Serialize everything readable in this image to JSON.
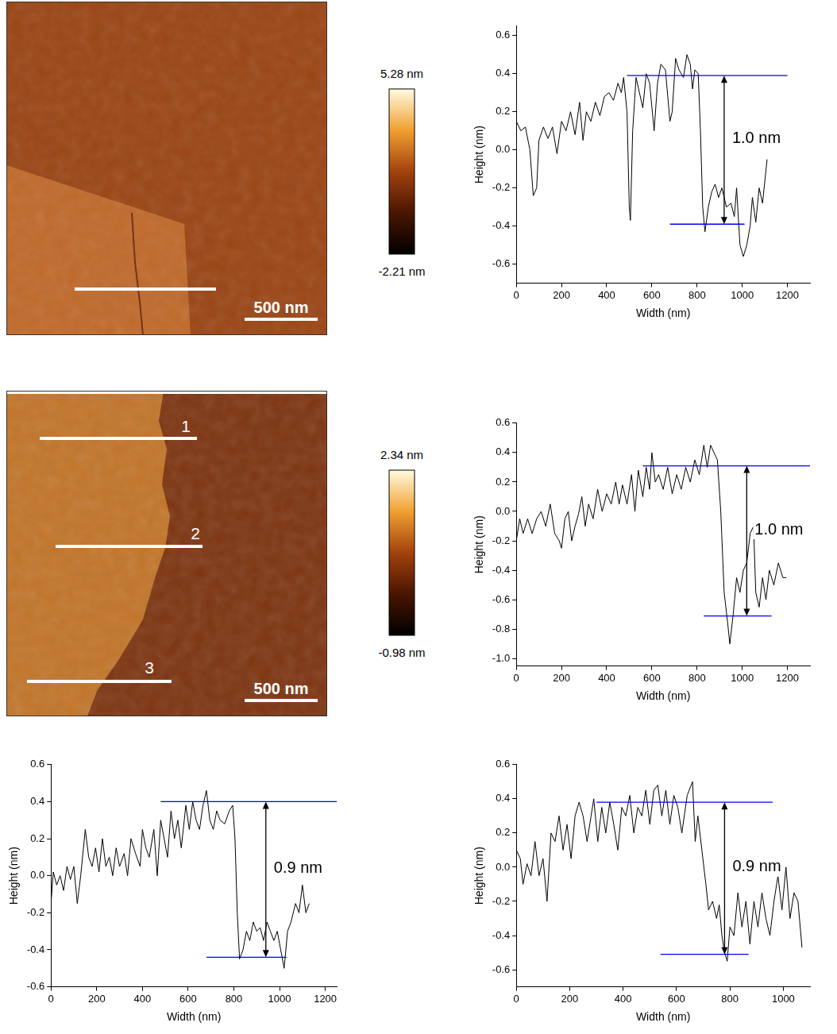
{
  "images": [
    {
      "scale_bar": "500 nm",
      "colorbar": {
        "range": [
          -2.21,
          5.28
        ],
        "ticks": [
          {
            "value": 5.28,
            "label": "5.28 nm"
          },
          {
            "value": -2.21,
            "label": "-2.21 nm"
          }
        ]
      }
    },
    {
      "scale_bar": "500 nm",
      "profile_labels": [
        "1",
        "2",
        "3"
      ],
      "colorbar": {
        "range": [
          -0.98,
          2.34
        ],
        "ticks": [
          {
            "value": 2.34,
            "label": "2.34 nm"
          },
          {
            "value": -0.98,
            "label": "-0.98 nm"
          }
        ]
      }
    }
  ],
  "chart_data": [
    {
      "type": "line",
      "x_label": "Width (nm)",
      "y_label": "Height (nm)",
      "color": "#000000",
      "grid": false,
      "x": [
        0,
        20,
        40,
        60,
        75,
        90,
        100,
        120,
        140,
        160,
        180,
        200,
        220,
        240,
        260,
        280,
        295,
        310,
        330,
        350,
        370,
        390,
        410,
        430,
        450,
        465,
        475,
        490,
        500,
        505,
        515,
        530,
        545,
        560,
        575,
        590,
        610,
        625,
        640,
        660,
        680,
        690,
        705,
        720,
        740,
        755,
        770,
        780,
        790,
        805,
        815,
        825,
        835,
        850,
        865,
        880,
        895,
        910,
        930,
        950,
        965,
        975,
        990,
        1005,
        1020,
        1035,
        1045,
        1060,
        1075,
        1090,
        1110
      ],
      "values": [
        0.15,
        0.1,
        0.12,
        0,
        -0.24,
        -0.2,
        0.05,
        0.12,
        0.06,
        0.12,
        -0.02,
        0.15,
        0.1,
        0.2,
        0.08,
        0.25,
        0.05,
        0.2,
        0.15,
        0.25,
        0.18,
        0.28,
        0.3,
        0.26,
        0.35,
        0.3,
        0.38,
        0.2,
        -0.3,
        -0.37,
        0.1,
        0.38,
        0.3,
        0.22,
        0.4,
        0.35,
        0.1,
        0.35,
        0.45,
        0.42,
        0.15,
        0.2,
        0.48,
        0.42,
        0.38,
        0.5,
        0.45,
        0.32,
        0.42,
        0.4,
        0.1,
        -0.3,
        -0.43,
        -0.3,
        -0.22,
        -0.18,
        -0.25,
        -0.2,
        -0.3,
        -0.28,
        -0.35,
        -0.2,
        -0.5,
        -0.56,
        -0.5,
        -0.4,
        -0.25,
        -0.38,
        -0.2,
        -0.28,
        -0.05
      ],
      "xlim": [
        0,
        1300
      ],
      "xticks": [
        0,
        200,
        400,
        600,
        800,
        1000,
        1200
      ],
      "ylim": [
        -0.7,
        0.65
      ],
      "yticks": [
        -0.6,
        -0.4,
        -0.2,
        {
          "value": 0,
          "label": "0.0"
        },
        0.2,
        0.4,
        0.6
      ],
      "reference_lines": [
        {
          "y": 0.39,
          "x": [
            490,
            1200
          ]
        },
        {
          "y": -0.39,
          "x": [
            680,
            1010
          ]
        }
      ],
      "arrow": {
        "x": 920,
        "y": [
          0.39,
          -0.39
        ],
        "label": "1.0 nm"
      }
    },
    {
      "type": "line",
      "x_label": "Width (nm)",
      "y_label": "Height (nm)",
      "color": "#000000",
      "grid": false,
      "x": [
        0,
        15,
        30,
        50,
        70,
        90,
        110,
        130,
        150,
        170,
        190,
        200,
        215,
        230,
        245,
        260,
        275,
        290,
        305,
        320,
        340,
        360,
        380,
        400,
        420,
        440,
        455,
        470,
        490,
        510,
        525,
        540,
        560,
        575,
        590,
        600,
        615,
        630,
        650,
        670,
        690,
        710,
        730,
        750,
        770,
        790,
        810,
        830,
        845,
        860,
        875,
        890,
        905,
        920,
        935,
        945,
        960,
        975,
        990,
        1005,
        1020,
        1035,
        1050,
        1060,
        1075,
        1090,
        1105,
        1120,
        1140,
        1160,
        1180,
        1195
      ],
      "values": [
        -0.2,
        -0.05,
        -0.15,
        -0.05,
        -0.15,
        -0.05,
        0,
        -0.1,
        0.05,
        -0.15,
        -0.2,
        -0.25,
        -0.05,
        0,
        -0.2,
        -0.1,
        -0.02,
        0.1,
        -0.1,
        0.05,
        -0.05,
        0.15,
        0,
        0.12,
        0.05,
        0.2,
        0.05,
        0.18,
        0.05,
        0.25,
        0,
        0.28,
        0.1,
        0.3,
        0.15,
        0.4,
        0.2,
        0.25,
        0.15,
        0.3,
        0.12,
        0.25,
        0.15,
        0.3,
        0.2,
        0.35,
        0.25,
        0.45,
        0.3,
        0.45,
        0.4,
        0.35,
        0,
        -0.55,
        -0.75,
        -0.9,
        -0.7,
        -0.45,
        -0.55,
        -0.4,
        -0.35,
        -0.15,
        -0.1,
        -0.55,
        -0.65,
        -0.45,
        -0.6,
        -0.4,
        -0.5,
        -0.35,
        -0.45,
        -0.45
      ],
      "xlim": [
        0,
        1300
      ],
      "xticks": [
        0,
        200,
        400,
        600,
        800,
        1000,
        1200
      ],
      "ylim": [
        -1.05,
        0.6
      ],
      "yticks": [
        {
          "value": -1,
          "label": "-1.0"
        },
        -0.8,
        -0.6,
        -0.4,
        -0.2,
        {
          "value": 0,
          "label": "0.0"
        },
        0.2,
        0.4,
        0.6
      ],
      "reference_lines": [
        {
          "y": 0.31,
          "x": [
            560,
            1300
          ]
        },
        {
          "y": -0.71,
          "x": [
            830,
            1130
          ]
        }
      ],
      "arrow": {
        "x": 1020,
        "y": [
          0.31,
          -0.71
        ],
        "label": "1.0 nm"
      }
    },
    {
      "type": "line",
      "x_label": "Width (nm)",
      "y_label": "Height (nm)",
      "color": "#000000",
      "grid": false,
      "x": [
        0,
        10,
        25,
        40,
        55,
        70,
        85,
        100,
        115,
        130,
        150,
        165,
        180,
        195,
        210,
        225,
        240,
        255,
        270,
        285,
        300,
        320,
        335,
        350,
        370,
        390,
        400,
        415,
        430,
        450,
        465,
        480,
        495,
        510,
        525,
        540,
        555,
        570,
        590,
        605,
        620,
        635,
        650,
        665,
        680,
        695,
        710,
        725,
        740,
        760,
        780,
        795,
        805,
        815,
        825,
        840,
        855,
        870,
        885,
        900,
        915,
        930,
        945,
        960,
        975,
        990,
        1005,
        1020,
        1035,
        1050,
        1070,
        1085,
        1100,
        1115,
        1130
      ],
      "values": [
        -0.15,
        0.02,
        -0.05,
        0,
        -0.08,
        0.05,
        -0.02,
        0.05,
        -0.15,
        0,
        0.25,
        0.1,
        0.05,
        0.15,
        0.02,
        0.2,
        0.05,
        0.1,
        0,
        0.15,
        0.05,
        0.12,
        0,
        0.2,
        0.12,
        0.05,
        0.25,
        0.15,
        0.1,
        0.25,
        0,
        0.3,
        0.2,
        0.1,
        0.35,
        0.2,
        0.3,
        0.15,
        0.38,
        0.25,
        0.4,
        0.3,
        0.25,
        0.38,
        0.46,
        0.3,
        0.25,
        0.35,
        0.3,
        0.28,
        0.35,
        0.38,
        0.2,
        -0.2,
        -0.45,
        -0.4,
        -0.3,
        -0.35,
        -0.25,
        -0.3,
        -0.28,
        -0.35,
        -0.25,
        -0.3,
        -0.35,
        -0.3,
        -0.4,
        -0.5,
        -0.3,
        -0.25,
        -0.15,
        -0.2,
        -0.05,
        -0.2,
        -0.15
      ],
      "xlim": [
        0,
        1250
      ],
      "xticks": [
        0,
        200,
        400,
        600,
        800,
        1000,
        1200
      ],
      "ylim": [
        -0.6,
        0.6
      ],
      "yticks": [
        -0.6,
        -0.4,
        -0.2,
        {
          "value": 0,
          "label": "0.0"
        },
        0.2,
        0.4,
        0.6
      ],
      "reference_lines": [
        {
          "y": 0.4,
          "x": [
            480,
            1250
          ]
        },
        {
          "y": -0.44,
          "x": [
            680,
            1030
          ]
        }
      ],
      "arrow": {
        "x": 940,
        "y": [
          0.4,
          -0.44
        ],
        "label": "0.9 nm"
      }
    },
    {
      "type": "line",
      "x_label": "Width (nm)",
      "y_label": "Height (nm)",
      "color": "#000000",
      "grid": false,
      "x": [
        0,
        15,
        25,
        40,
        55,
        70,
        85,
        100,
        115,
        130,
        145,
        160,
        175,
        190,
        205,
        220,
        235,
        250,
        265,
        280,
        290,
        305,
        320,
        335,
        350,
        365,
        380,
        395,
        410,
        425,
        440,
        455,
        470,
        485,
        500,
        515,
        530,
        545,
        560,
        575,
        590,
        605,
        620,
        640,
        660,
        670,
        680,
        695,
        710,
        720,
        735,
        750,
        760,
        770,
        780,
        790,
        800,
        815,
        830,
        845,
        860,
        875,
        890,
        905,
        920,
        935,
        950,
        965,
        980,
        995,
        1010,
        1025,
        1040,
        1055,
        1070
      ],
      "values": [
        0.1,
        0.05,
        -0.1,
        0.02,
        -0.05,
        0.15,
        -0.05,
        0.05,
        -0.2,
        0.2,
        0.15,
        0.3,
        0.1,
        0.25,
        0.05,
        0.3,
        0.38,
        0.3,
        0.15,
        0.3,
        0.4,
        0.15,
        0.35,
        0.2,
        0.38,
        0.25,
        0.1,
        0.35,
        0.3,
        0.42,
        0.2,
        0.35,
        0.3,
        0.45,
        0.25,
        0.45,
        0.48,
        0.3,
        0.45,
        0.25,
        0.42,
        0.35,
        0.2,
        0.42,
        0.5,
        0.15,
        0.3,
        0.1,
        -0.1,
        -0.25,
        -0.2,
        -0.3,
        -0.22,
        -0.4,
        -0.5,
        -0.55,
        -0.35,
        -0.4,
        -0.15,
        -0.35,
        -0.2,
        -0.45,
        -0.2,
        -0.35,
        -0.15,
        -0.3,
        -0.4,
        -0.2,
        -0.05,
        -0.25,
        0,
        -0.3,
        -0.15,
        -0.2,
        -0.47
      ],
      "xlim": [
        0,
        1100
      ],
      "xticks": [
        0,
        200,
        400,
        600,
        800,
        1000
      ],
      "ylim": [
        -0.7,
        0.6
      ],
      "yticks": [
        -0.6,
        -0.4,
        -0.2,
        {
          "value": 0,
          "label": "0.0"
        },
        0.2,
        0.4,
        0.6
      ],
      "reference_lines": [
        {
          "y": 0.38,
          "x": [
            300,
            960
          ]
        },
        {
          "y": -0.51,
          "x": [
            540,
            870
          ]
        }
      ],
      "arrow": {
        "x": 780,
        "y": [
          0.38,
          -0.51
        ],
        "label": "0.9 nm"
      }
    }
  ]
}
